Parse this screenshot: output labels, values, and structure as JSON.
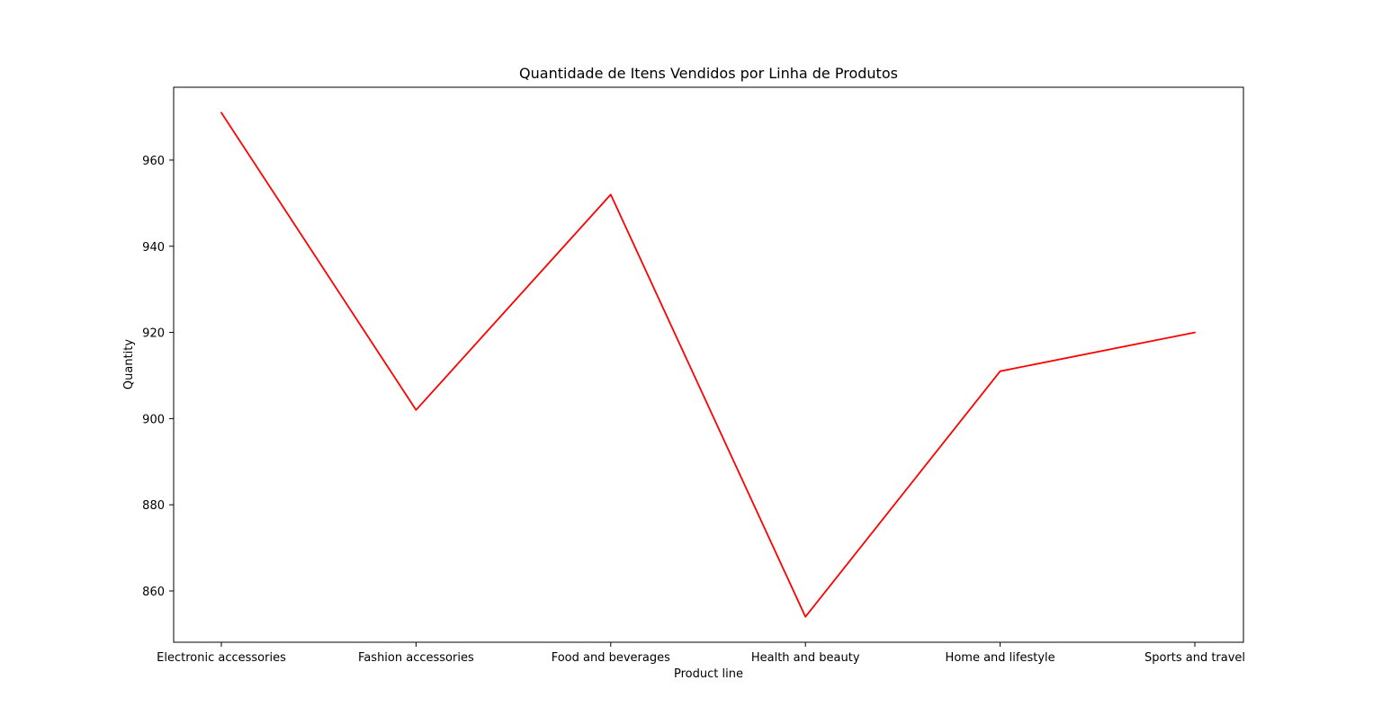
{
  "colors": {
    "line": "#ff0000",
    "axes": "#000000",
    "background": "#ffffff"
  },
  "chart_data": {
    "type": "line",
    "title": "Quantidade de Itens Vendidos por Linha de Produtos",
    "xlabel": "Product line",
    "ylabel": "Quantity",
    "categories": [
      "Electronic accessories",
      "Fashion accessories",
      "Food and beverages",
      "Health and beauty",
      "Home and lifestyle",
      "Sports and travel"
    ],
    "values": [
      971,
      902,
      952,
      854,
      911,
      920
    ],
    "ylim": [
      848.1,
      976.9
    ],
    "yticks": [
      860,
      880,
      900,
      920,
      940,
      960
    ],
    "grid": false,
    "legend": "none"
  }
}
